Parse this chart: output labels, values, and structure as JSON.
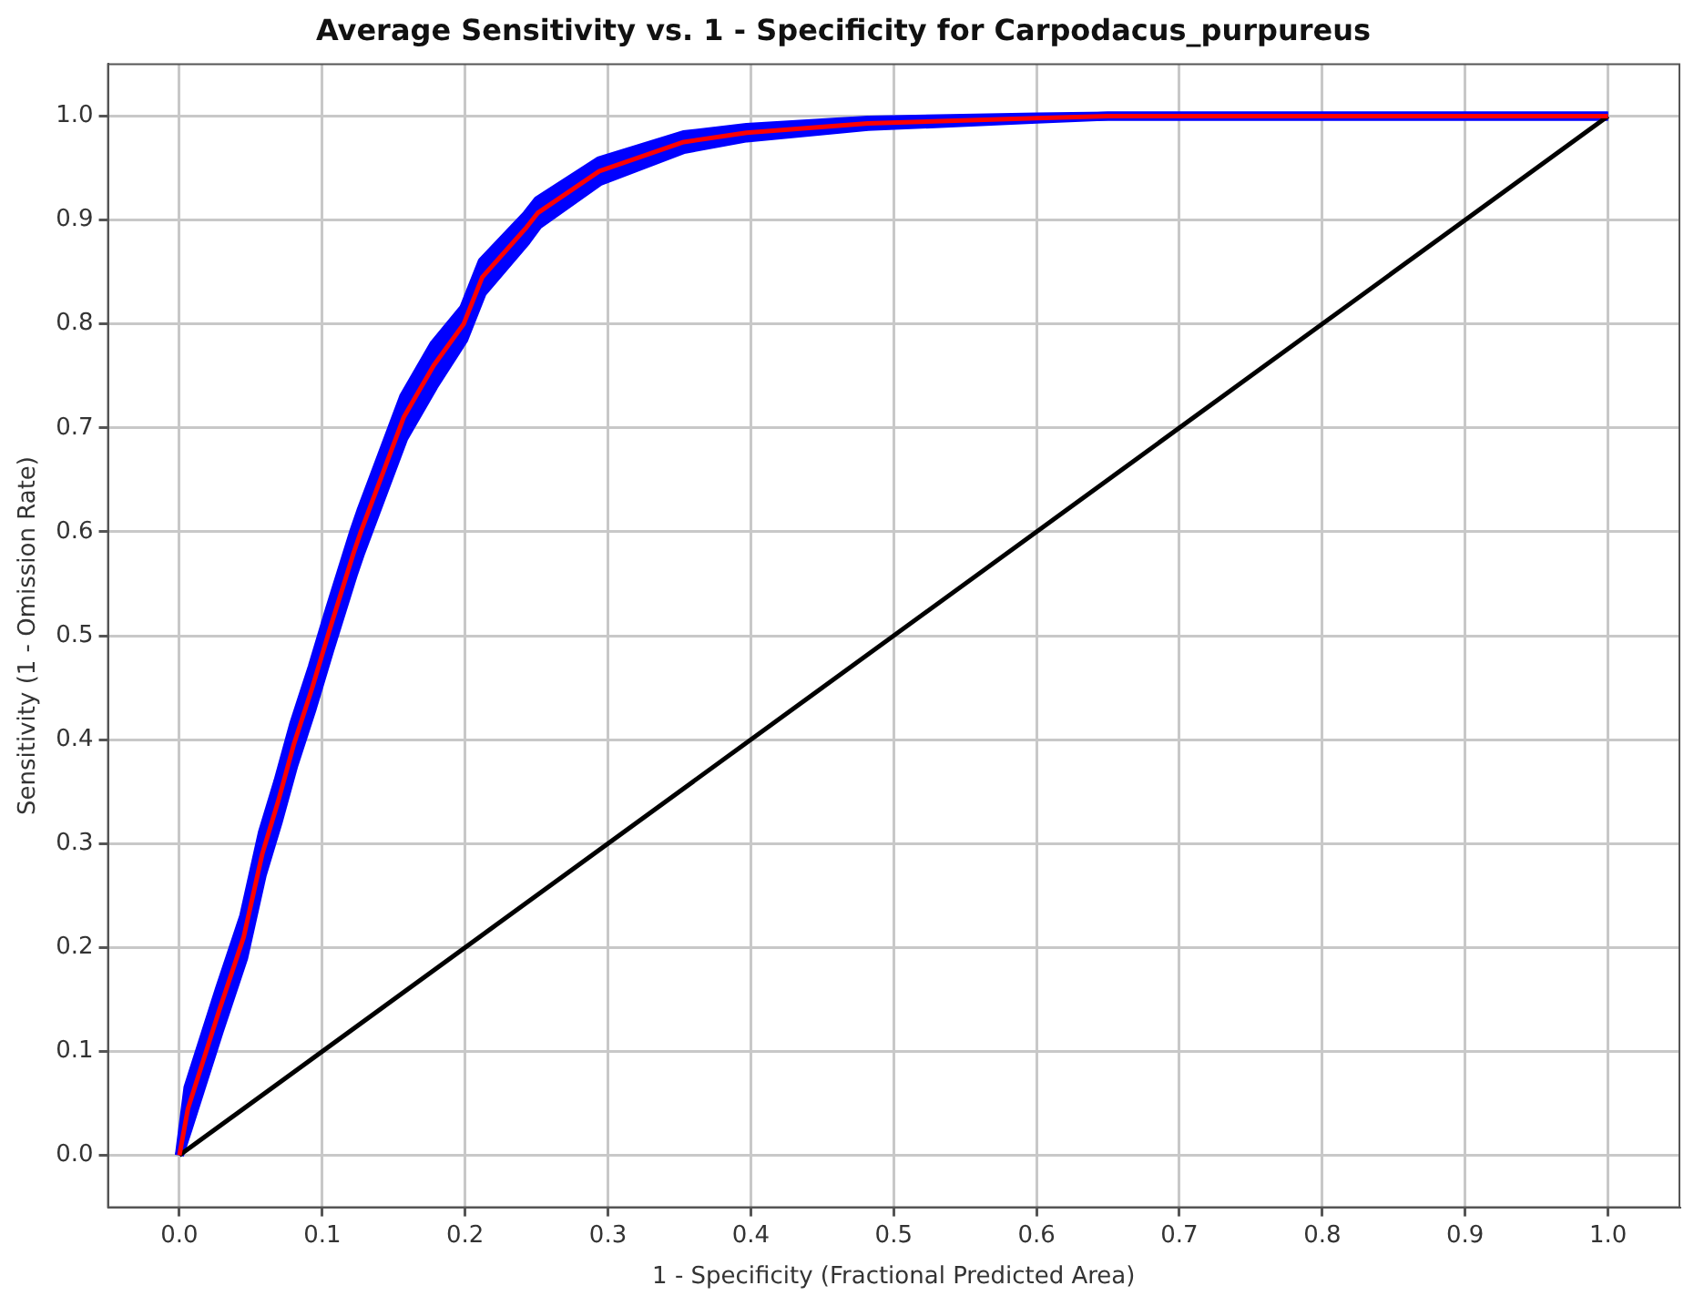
{
  "chart_data": {
    "type": "line",
    "title": "Average Sensitivity vs. 1 - Specificity for Carpodacus_purpureus",
    "xlabel": "1 - Specificity (Fractional Predicted Area)",
    "ylabel": "Sensitivity (1 - Omission Rate)",
    "xlim": [
      -0.05,
      1.05
    ],
    "ylim": [
      -0.05,
      1.05
    ],
    "xticks": [
      {
        "value": 0,
        "label": "0.0"
      },
      0.1,
      0.2,
      0.3,
      0.4,
      0.5,
      0.6,
      0.7,
      0.8,
      0.9,
      {
        "value": 1,
        "label": "1.0"
      }
    ],
    "yticks": [
      {
        "value": 0,
        "label": "0.0"
      },
      0.1,
      0.2,
      0.3,
      0.4,
      0.5,
      0.6,
      0.7,
      0.8,
      0.9,
      {
        "value": 1,
        "label": "1.0"
      }
    ],
    "grid": true,
    "legend": false,
    "marker": "none",
    "line_style": "solid",
    "series": [
      {
        "color": "#ff0000",
        "x": [
          0,
          0.006,
          0.028,
          0.045,
          0.058,
          0.069,
          0.08,
          0.093,
          0.105,
          0.122,
          0.127,
          0.157,
          0.178,
          0.199,
          0.212,
          0.243,
          0.251,
          0.294,
          0.353,
          0.397,
          0.482,
          0.6,
          0.65,
          1.0
        ],
        "values": [
          0,
          0.045,
          0.14,
          0.21,
          0.29,
          0.34,
          0.395,
          0.45,
          0.505,
          0.58,
          0.6,
          0.71,
          0.76,
          0.8,
          0.845,
          0.893,
          0.907,
          0.947,
          0.975,
          0.984,
          0.993,
          0.998,
          1.0,
          1.0
        ],
        "lower": [
          0,
          0.025,
          0.12,
          0.19,
          0.27,
          0.32,
          0.375,
          0.43,
          0.485,
          0.56,
          0.58,
          0.69,
          0.74,
          0.785,
          0.83,
          0.88,
          0.895,
          0.937,
          0.968,
          0.979,
          0.99,
          0.997,
          1.0,
          1.0
        ],
        "upper": [
          0,
          0.065,
          0.16,
          0.23,
          0.31,
          0.36,
          0.415,
          0.47,
          0.525,
          0.6,
          0.62,
          0.73,
          0.78,
          0.815,
          0.86,
          0.905,
          0.919,
          0.957,
          0.982,
          0.989,
          0.996,
          0.999,
          1.0,
          1.0
        ]
      },
      {
        "color": "#000000",
        "x": [
          0,
          1
        ],
        "values": [
          0,
          1
        ]
      }
    ]
  }
}
